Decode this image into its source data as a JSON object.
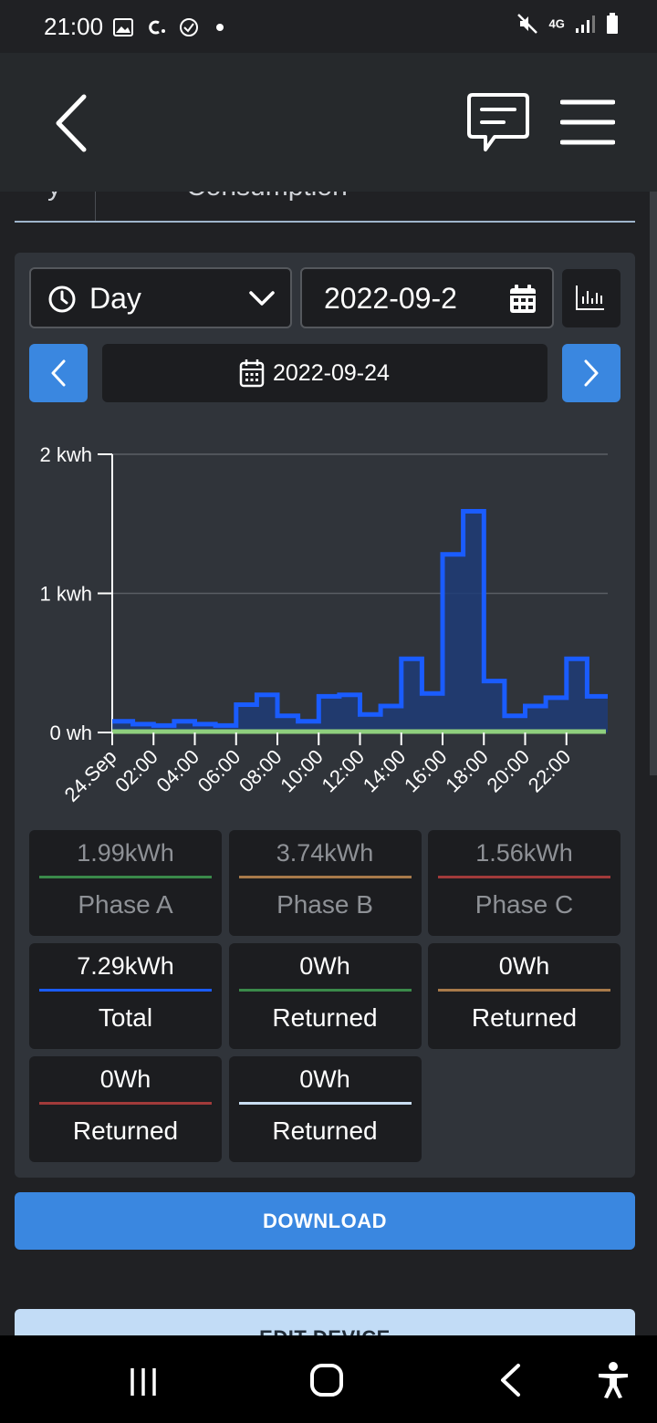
{
  "status_bar": {
    "time": "21:00",
    "left_icons": [
      "image-icon",
      "c-app-icon",
      "check-circle-icon",
      "dot-icon"
    ],
    "right_icons": [
      "mute-icon",
      "4g-icon",
      "signal-icon",
      "battery-icon"
    ],
    "network_label": "4G"
  },
  "app_bar": {
    "icons": [
      "back-icon",
      "chat-icon",
      "menu-icon"
    ]
  },
  "tabs": {
    "partial_number": "y",
    "partial_label": "Consumption"
  },
  "controls": {
    "period_select": "Day",
    "date_input_value": "2022-09-2",
    "current_date": "2022-09-24"
  },
  "chart_data": {
    "type": "area",
    "title": "",
    "xlabel": "",
    "ylabel": "",
    "ylim": [
      0,
      2
    ],
    "y_ticks": [
      "0 wh",
      "1 kwh",
      "2 kwh"
    ],
    "x_ticks": [
      "24.Sep",
      "02:00",
      "04:00",
      "06:00",
      "08:00",
      "10:00",
      "12:00",
      "14:00",
      "16:00",
      "18:00",
      "20:00",
      "22:00"
    ],
    "step": true,
    "grid": true,
    "legend": "none",
    "series": [
      {
        "color": "#1a5cff",
        "hours": [
          0,
          1,
          2,
          3,
          4,
          5,
          6,
          7,
          8,
          9,
          10,
          11,
          12,
          13,
          14,
          15,
          16,
          17,
          18,
          19,
          20,
          21,
          22,
          23
        ],
        "values": [
          0.08,
          0.06,
          0.05,
          0.08,
          0.06,
          0.05,
          0.2,
          0.27,
          0.12,
          0.08,
          0.26,
          0.27,
          0.13,
          0.19,
          0.53,
          0.28,
          1.28,
          1.59,
          0.37,
          0.12,
          0.19,
          0.25,
          0.53,
          0.26
        ]
      },
      {
        "color": "#8fcf7e",
        "hours": [
          0,
          23
        ],
        "values": [
          0,
          0
        ]
      }
    ]
  },
  "stats": [
    {
      "value": "1.99kWh",
      "label": "Phase A",
      "color": "#3a8a4a",
      "style": "dim"
    },
    {
      "value": "3.74kWh",
      "label": "Phase B",
      "color": "#a87a4a",
      "style": "dim"
    },
    {
      "value": "1.56kWh",
      "label": "Phase C",
      "color": "#a13a3a",
      "style": "dim"
    },
    {
      "value": "7.29kWh",
      "label": "Total",
      "color": "#1a5cff",
      "style": "bright"
    },
    {
      "value": "0Wh",
      "label": "Returned",
      "color": "#3a8a4a",
      "style": "bright"
    },
    {
      "value": "0Wh",
      "label": "Returned",
      "color": "#a87a4a",
      "style": "bright"
    },
    {
      "value": "0Wh",
      "label": "Returned",
      "color": "#a13a3a",
      "style": "bright"
    },
    {
      "value": "0Wh",
      "label": "Returned",
      "color": "#c9ddf2",
      "style": "bright"
    }
  ],
  "buttons": {
    "download": "DOWNLOAD",
    "edit_device": "EDIT DEVICE"
  },
  "colors": {
    "accent": "#3a87e0",
    "background": "#202124",
    "card": "#30343a"
  }
}
